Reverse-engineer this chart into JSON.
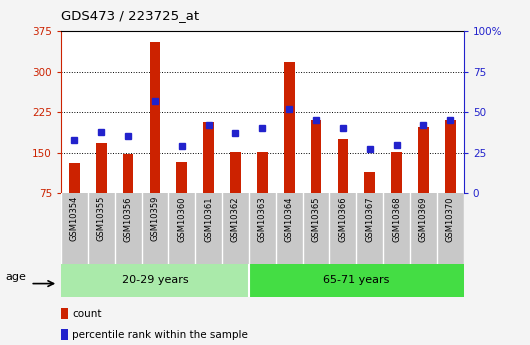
{
  "title": "GDS473 / 223725_at",
  "samples": [
    "GSM10354",
    "GSM10355",
    "GSM10356",
    "GSM10359",
    "GSM10360",
    "GSM10361",
    "GSM10362",
    "GSM10363",
    "GSM10364",
    "GSM10365",
    "GSM10366",
    "GSM10367",
    "GSM10368",
    "GSM10369",
    "GSM10370"
  ],
  "counts": [
    130,
    168,
    148,
    355,
    132,
    207,
    152,
    152,
    318,
    210,
    175,
    115,
    152,
    198,
    210
  ],
  "percentile": [
    33,
    38,
    35,
    57,
    29,
    42,
    37,
    40,
    52,
    45,
    40,
    27,
    30,
    42,
    45
  ],
  "group1_label": "20-29 years",
  "group2_label": "65-71 years",
  "group1_count": 7,
  "group2_count": 8,
  "ylim_left": [
    75,
    375
  ],
  "ylim_right": [
    0,
    100
  ],
  "yticks_left": [
    75,
    150,
    225,
    300,
    375
  ],
  "yticks_right": [
    0,
    25,
    50,
    75,
    100
  ],
  "ytick_labels_right": [
    "0",
    "25",
    "50",
    "75",
    "100%"
  ],
  "bar_color": "#cc2200",
  "square_color": "#2222cc",
  "grid_color": "black",
  "bg_plot": "#ffffff",
  "bg_xtick": "#c8c8c8",
  "bg_group1": "#aaeaaa",
  "bg_group2": "#44dd44",
  "age_label": "age",
  "legend_count": "count",
  "legend_pct": "percentile rank within the sample",
  "left_axis_color": "#cc2200",
  "right_axis_color": "#2222cc",
  "fig_bg": "#f4f4f4"
}
